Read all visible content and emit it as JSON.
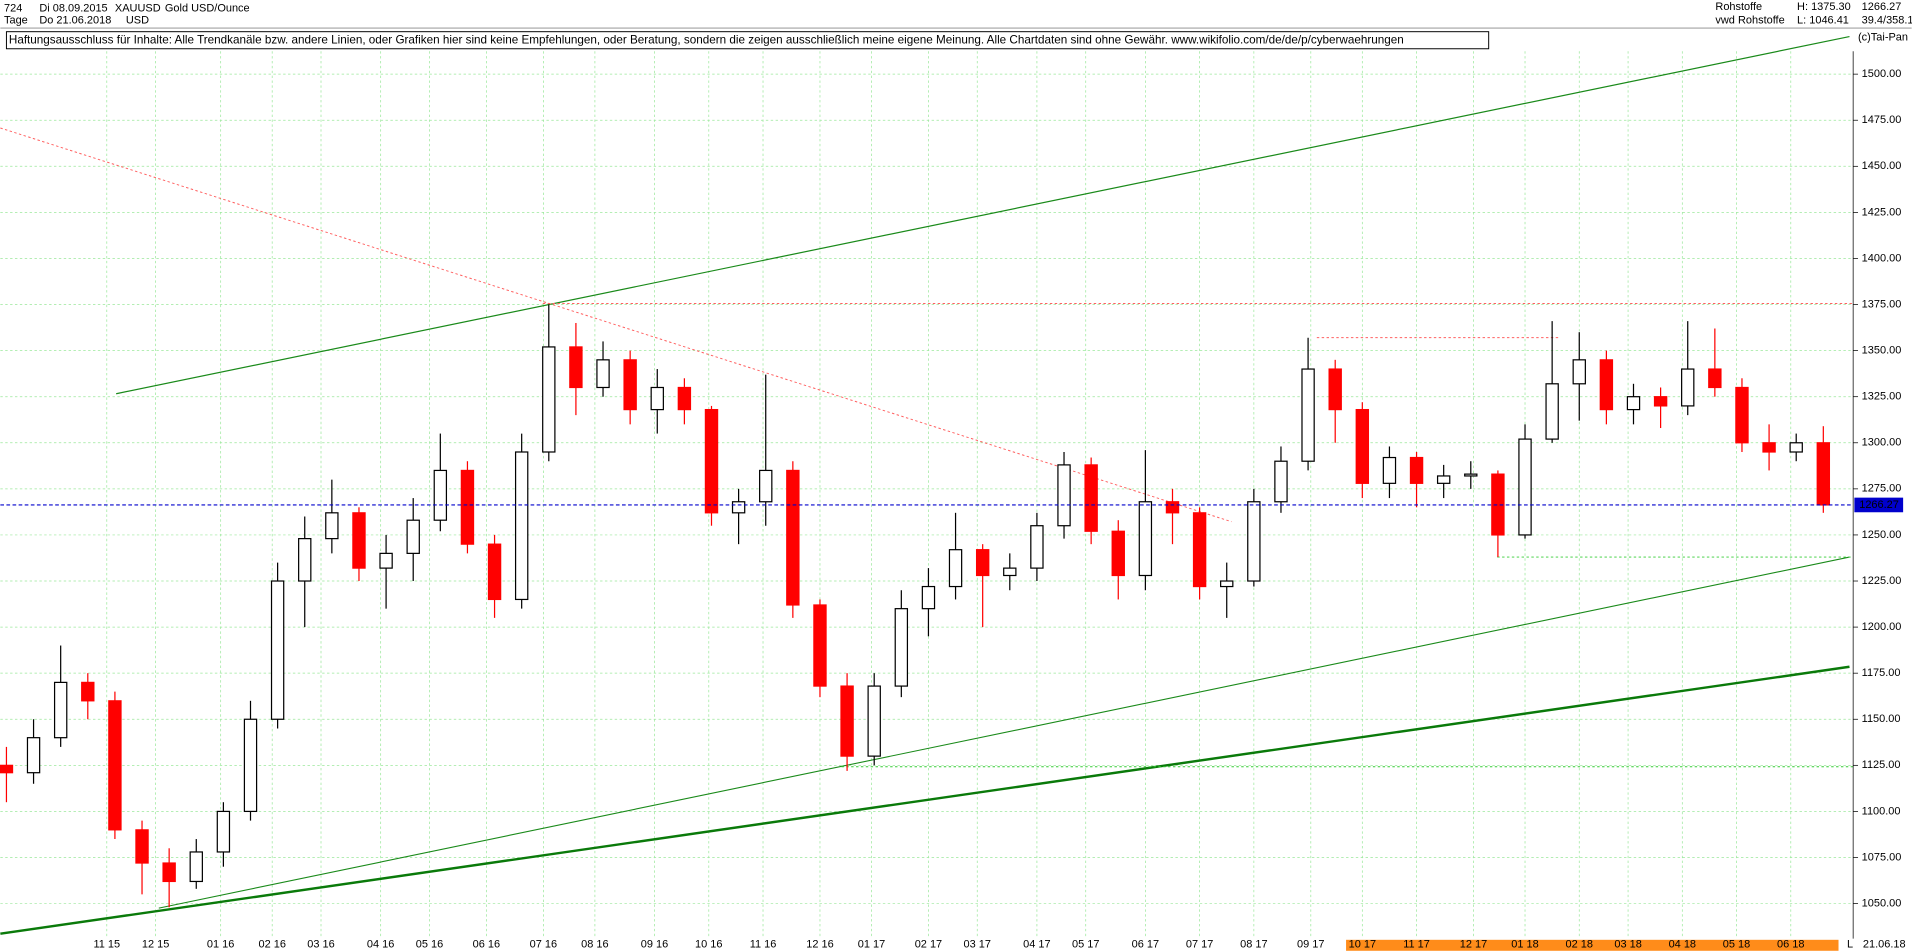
{
  "chart_data": {
    "type": "candlestick",
    "header": {
      "id": "724",
      "unit": "Tage",
      "from": "Di 08.09.2015",
      "to": "Do 21.06.2018",
      "symbol": "XAUUSD",
      "currency": "USD",
      "name": "Gold USD/Ounce",
      "group": "Rohstoffe",
      "source": "vwd Rohstoffe",
      "high": "H: 1375.30",
      "low": "L: 1046.41",
      "ratio": "39.4/358.1",
      "copyright": "(c)Tai-Pan"
    },
    "disclaimer": "Haftungsausschluss für Inhalte: Alle Trendkanäle bzw. andere Linien, oder Grafiken hier sind keine Empfehlungen, oder Beratung, sondern die zeigen ausschließlich meine eigene Meinung. Alle Chartdaten sind ohne Gewähr.  www.wikifolio.com/de/de/p/cyberwaehrungen",
    "end_label": "L",
    "end_date": "21.06.18",
    "up_color": "#000000",
    "down_color": "#ff0000",
    "last_color": "#0000cc",
    "grid": true,
    "xlim": [
      -0.225,
      68.1
    ],
    "xticks": [
      {
        "value": 3.7,
        "label": "11 15"
      },
      {
        "value": 5.5,
        "label": "12 15"
      },
      {
        "value": 7.9,
        "label": "01 16"
      },
      {
        "value": 9.8,
        "label": "02 16"
      },
      {
        "value": 11.6,
        "label": "03 16"
      },
      {
        "value": 13.8,
        "label": "04 16"
      },
      {
        "value": 15.6,
        "label": "05 16"
      },
      {
        "value": 17.7,
        "label": "06 16"
      },
      {
        "value": 19.8,
        "label": "07 16"
      },
      {
        "value": 21.7,
        "label": "08 16"
      },
      {
        "value": 23.9,
        "label": "09 16"
      },
      {
        "value": 25.9,
        "label": "10 16"
      },
      {
        "value": 27.9,
        "label": "11 16"
      },
      {
        "value": 30.0,
        "label": "12 16"
      },
      {
        "value": 31.9,
        "label": "01 17"
      },
      {
        "value": 34.0,
        "label": "02 17"
      },
      {
        "value": 35.8,
        "label": "03 17"
      },
      {
        "value": 38.0,
        "label": "04 17"
      },
      {
        "value": 39.8,
        "label": "05 17"
      },
      {
        "value": 42.0,
        "label": "06 17"
      },
      {
        "value": 44.0,
        "label": "07 17"
      },
      {
        "value": 46.0,
        "label": "08 17"
      },
      {
        "value": 48.1,
        "label": "09 17"
      },
      {
        "value": 50.0,
        "label": "10 17"
      },
      {
        "value": 52.0,
        "label": "11 17"
      },
      {
        "value": 54.1,
        "label": "12 17"
      },
      {
        "value": 56.0,
        "label": "01 18"
      },
      {
        "value": 58.0,
        "label": "02 18"
      },
      {
        "value": 59.8,
        "label": "03 18"
      },
      {
        "value": 61.8,
        "label": "04 18"
      },
      {
        "value": 63.8,
        "label": "05 18"
      },
      {
        "value": 65.8,
        "label": "06 18"
      }
    ],
    "ylim": [
      1031,
      1527
    ],
    "yticks": [
      {
        "value": 1050,
        "label": "1050.00"
      },
      {
        "value": 1075,
        "label": "1075.00"
      },
      {
        "value": 1100,
        "label": "1100.00"
      },
      {
        "value": 1125,
        "label": "1125.00"
      },
      {
        "value": 1150,
        "label": "1150.00"
      },
      {
        "value": 1175,
        "label": "1175.00"
      },
      {
        "value": 1200,
        "label": "1200.00"
      },
      {
        "value": 1225,
        "label": "1225.00"
      },
      {
        "value": 1250,
        "label": "1250.00"
      },
      {
        "value": 1275,
        "label": "1275.00"
      },
      {
        "value": 1300,
        "label": "1300.00"
      },
      {
        "value": 1325,
        "label": "1325.00"
      },
      {
        "value": 1350,
        "label": "1350.00"
      },
      {
        "value": 1375,
        "label": "1375.00"
      },
      {
        "value": 1400,
        "label": "1400.00"
      },
      {
        "value": 1425,
        "label": "1425.00"
      },
      {
        "value": 1450,
        "label": "1450.00"
      },
      {
        "value": 1475,
        "label": "1475.00"
      },
      {
        "value": 1500,
        "label": "1500.00"
      }
    ],
    "open": [
      1125,
      1121,
      1140,
      1170,
      1160,
      1090,
      1072,
      1062,
      1078,
      1100,
      1150,
      1225,
      1248,
      1262,
      1232,
      1240,
      1258,
      1285,
      1245,
      1215,
      1295,
      1352,
      1330,
      1345,
      1318,
      1330,
      1318,
      1262,
      1268,
      1285,
      1212,
      1168,
      1130,
      1168,
      1210,
      1222,
      1242,
      1228,
      1232,
      1255,
      1288,
      1252,
      1228,
      1268,
      1262,
      1222,
      1225,
      1268,
      1290,
      1340,
      1318,
      1278,
      1292,
      1278,
      1282,
      1283,
      1250,
      1302,
      1332,
      1345,
      1318,
      1325,
      1320,
      1340,
      1330,
      1300,
      1295,
      1300
    ],
    "high": [
      1135,
      1150,
      1190,
      1175,
      1165,
      1095,
      1080,
      1085,
      1105,
      1160,
      1235,
      1260,
      1280,
      1265,
      1250,
      1270,
      1305,
      1290,
      1250,
      1305,
      1375,
      1365,
      1355,
      1350,
      1340,
      1335,
      1320,
      1275,
      1337,
      1290,
      1215,
      1175,
      1175,
      1220,
      1232,
      1262,
      1245,
      1240,
      1262,
      1295,
      1292,
      1258,
      1296,
      1275,
      1265,
      1235,
      1275,
      1298,
      1357,
      1345,
      1322,
      1298,
      1295,
      1288,
      1290,
      1285,
      1310,
      1366,
      1360,
      1350,
      1332,
      1330,
      1366,
      1362,
      1335,
      1310,
      1305,
      1309
    ],
    "low": [
      1105,
      1115,
      1135,
      1150,
      1085,
      1055,
      1048,
      1058,
      1070,
      1095,
      1145,
      1200,
      1240,
      1225,
      1210,
      1225,
      1252,
      1240,
      1205,
      1210,
      1290,
      1315,
      1325,
      1310,
      1305,
      1310,
      1255,
      1245,
      1255,
      1205,
      1162,
      1122,
      1125,
      1162,
      1195,
      1215,
      1200,
      1220,
      1225,
      1248,
      1245,
      1215,
      1220,
      1245,
      1215,
      1205,
      1222,
      1262,
      1285,
      1300,
      1270,
      1270,
      1265,
      1270,
      1275,
      1238,
      1248,
      1300,
      1312,
      1310,
      1310,
      1308,
      1315,
      1325,
      1295,
      1285,
      1290,
      1262
    ],
    "close": [
      1121,
      1140,
      1170,
      1160,
      1090,
      1072,
      1062,
      1078,
      1100,
      1150,
      1225,
      1248,
      1262,
      1232,
      1240,
      1258,
      1285,
      1245,
      1215,
      1295,
      1352,
      1330,
      1345,
      1318,
      1330,
      1318,
      1262,
      1268,
      1285,
      1212,
      1168,
      1130,
      1168,
      1210,
      1222,
      1242,
      1228,
      1232,
      1255,
      1288,
      1252,
      1228,
      1268,
      1262,
      1222,
      1225,
      1268,
      1290,
      1340,
      1318,
      1278,
      1292,
      1278,
      1282,
      1283,
      1250,
      1302,
      1332,
      1345,
      1318,
      1325,
      1320,
      1340,
      1330,
      1300,
      1295,
      1300,
      1266.27
    ]
  }
}
